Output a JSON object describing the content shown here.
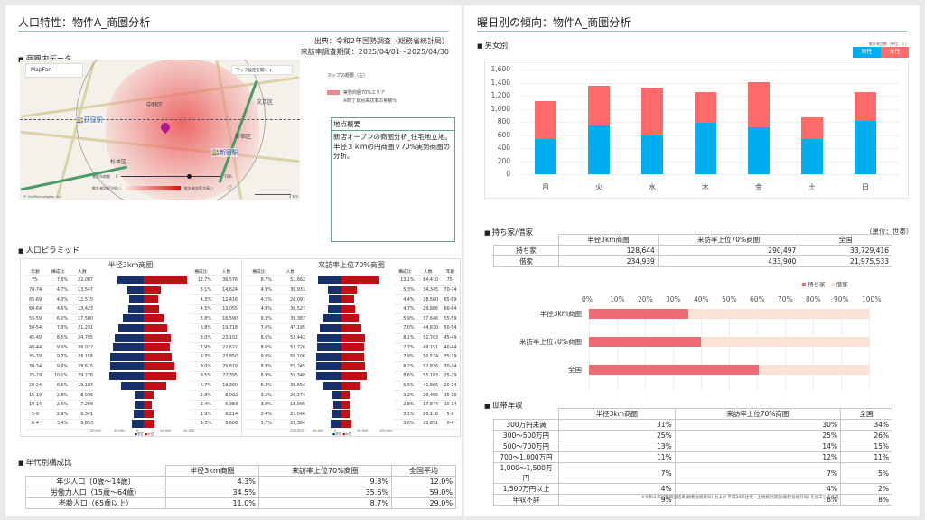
{
  "left": {
    "title": "人口特性：物件A_商圏分析",
    "source": "出典：令和2年国勢調査（総務省統計局）",
    "period": "来訪率調査期間：2025/04/01～2025/04/30",
    "area_section": "商圏内データ",
    "map": {
      "brand": "MapFan",
      "dropdown": "マップ設定を開く",
      "labels": [
        "文京区",
        "新宿区",
        "杉並区",
        "中野区"
      ],
      "stations": [
        "荻窪駅",
        "新宿駅"
      ],
      "slider_label": "来訪%商圏",
      "slider_min": "0",
      "slider_max": "70%",
      "grad_low": "推計来訪率が低い",
      "grad_high": "推計来訪率が高い",
      "copyright": "© GeoTechnologies, Inc.",
      "scale": "2 km"
    },
    "map_legend": {
      "title": "マップの概要（左）",
      "item": "実勢商圏70%エリア",
      "note": "※町丁目別来訪率の累積%"
    },
    "summary": {
      "header": "地点概要",
      "body": "新店オープンの商圏分析_住宅地立地。半径３ｋｍの円商圏ｖ70%実勢商圏の分析。"
    },
    "pyramid_section": "人口ピラミッド",
    "pyramids": [
      {
        "title": "半径3km商圏",
        "col_age": "年齢",
        "col_ratio": "構成比",
        "col_count": "人数",
        "axis": [
          "-40,000",
          "-20,000",
          "0",
          "20,000",
          "40,000"
        ],
        "legend_m": "男性",
        "legend_f": "女性"
      },
      {
        "title": "来訪率上位70%商圏",
        "col_age": "年齢",
        "col_ratio": "構成比",
        "col_count": "人数",
        "axis": [
          "-100,000",
          "-50,000",
          "0",
          "50,000",
          "100,000"
        ],
        "legend_m": "男性",
        "legend_f": "女性"
      }
    ],
    "age_section": "年代別構成比",
    "age_table": {
      "headers": [
        "半径3km商圏",
        "来訪率上位70%商圏",
        "全国平均"
      ],
      "rows": [
        {
          "label": "年少人口（0歳～14歳）",
          "values": [
            "4.3%",
            "9.8%",
            "12.0%"
          ]
        },
        {
          "label": "労働力人口（15歳～64歳）",
          "values": [
            "34.5%",
            "35.6%",
            "59.0%"
          ]
        },
        {
          "label": "老齢人口（65歳以上）",
          "values": [
            "11.0%",
            "8.7%",
            "29.0%"
          ]
        }
      ]
    }
  },
  "right": {
    "title": "曜日別の傾向：物件A_商圏分析",
    "gender_section": "男女別",
    "legend_unit": "推計来訪数（単位：人）",
    "legend_male": "男性",
    "legend_female": "女性",
    "housing_section": "持ち家/借家",
    "housing_unit": "（単位：世帯）",
    "housing_table": {
      "headers": [
        "半径3km商圏",
        "来訪率上位70%商圏",
        "全国"
      ],
      "rows": [
        {
          "label": "持ち家",
          "values": [
            "128,644",
            "290,497",
            "33,729,416"
          ]
        },
        {
          "label": "借家",
          "values": [
            "234,939",
            "433,900",
            "21,975,533"
          ]
        }
      ]
    },
    "housing_legend": [
      "持ち家",
      "借家"
    ],
    "income_section": "世帯年収",
    "income_table": {
      "headers": [
        "半径3km商圏",
        "来訪率上位70%商圏",
        "全国"
      ],
      "rows": [
        {
          "label": "300万円未満",
          "values": [
            "31%",
            "30%",
            "34%"
          ]
        },
        {
          "label": "300～500万円",
          "values": [
            "25%",
            "25%",
            "26%"
          ]
        },
        {
          "label": "500～700万円",
          "values": [
            "13%",
            "14%",
            "15%"
          ]
        },
        {
          "label": "700～1,000万円",
          "values": [
            "11%",
            "12%",
            "11%"
          ]
        },
        {
          "label": "1,000～1,500万円",
          "values": [
            "7%",
            "7%",
            "5%"
          ]
        },
        {
          "label": "1,500万円以上",
          "values": [
            "4%",
            "4%",
            "2%"
          ]
        },
        {
          "label": "年収不詳",
          "values": [
            "9%",
            "8%",
            "8%"
          ]
        }
      ]
    },
    "footnote": "※令和２年国勢調査結果(総務省統計局) および 平成30年住宅・土地統計調査(総務省統計局) を加工して作成"
  },
  "colors": {
    "male_blue": "#00aeef",
    "female_red": "#ff6666",
    "pyr_male": "#17306b",
    "pyr_female": "#c00e14",
    "own": "#ef6b73",
    "rent": "#fbe2d6",
    "title_line": "#8fc6cc"
  },
  "chart_data": [
    {
      "type": "bar",
      "title": "男女別",
      "stacked": true,
      "categories": [
        "月",
        "火",
        "水",
        "木",
        "金",
        "土",
        "日"
      ],
      "series": [
        {
          "name": "男性",
          "values": [
            540,
            750,
            590,
            780,
            720,
            540,
            810
          ]
        },
        {
          "name": "女性",
          "values": [
            580,
            600,
            730,
            470,
            690,
            330,
            440
          ]
        }
      ],
      "ylabel": "推計来訪数（単位：人）",
      "ylim": [
        0,
        1600
      ],
      "yticks": [
        "0",
        "200",
        "400",
        "600",
        "800",
        "1,000",
        "1,200",
        "1,400",
        "1,600"
      ]
    },
    {
      "type": "bar",
      "title": "持ち家/借家 比率",
      "orientation": "horizontal",
      "stacked": true,
      "categories": [
        "半径3km商圏",
        "来訪率上位70%商圏",
        "全国"
      ],
      "series": [
        {
          "name": "持ち家",
          "values": [
            35.4,
            40.1,
            60.6
          ]
        },
        {
          "name": "借家",
          "values": [
            64.6,
            59.9,
            39.4
          ]
        }
      ],
      "xlim": [
        0,
        100
      ],
      "xticks": [
        "0%",
        "10%",
        "20%",
        "30%",
        "40%",
        "50%",
        "60%",
        "70%",
        "80%",
        "90%",
        "100%"
      ]
    },
    {
      "type": "bar",
      "title": "半径3km商圏 人口ピラミッド",
      "orientation": "horizontal",
      "categories": [
        "75-",
        "70-74",
        "65-69",
        "60-64",
        "55-59",
        "50-54",
        "45-49",
        "40-44",
        "35-39",
        "30-34",
        "25-29",
        "20-24",
        "15-19",
        "10-14",
        "5-9",
        "0-4"
      ],
      "series": [
        {
          "name": "男性",
          "ratio": [
            "7.6%",
            "4.7%",
            "4.3%",
            "4.6%",
            "6.0%",
            "7.3%",
            "8.5%",
            "9.0%",
            "9.7%",
            "9.9%",
            "10.1%",
            "6.6%",
            "2.8%",
            "2.5%",
            "2.9%",
            "3.4%"
          ],
          "values": [
            22087,
            13547,
            12515,
            13423,
            17500,
            21291,
            24785,
            26022,
            28158,
            28615,
            29278,
            19187,
            8035,
            7296,
            8341,
            9853
          ]
        },
        {
          "name": "女性",
          "ratio": [
            "12.7%",
            "5.1%",
            "4.3%",
            "4.5%",
            "5.8%",
            "6.8%",
            "8.0%",
            "7.9%",
            "8.3%",
            "9.0%",
            "9.5%",
            "6.7%",
            "2.8%",
            "2.4%",
            "2.9%",
            "3.3%"
          ],
          "values": [
            36576,
            14624,
            12416,
            13055,
            16590,
            19718,
            23102,
            22622,
            23850,
            25819,
            27395,
            19360,
            8092,
            6983,
            8214,
            9606
          ]
        }
      ],
      "xlim": [
        -40000,
        40000
      ]
    },
    {
      "type": "bar",
      "title": "来訪率上位70%商圏 人口ピラミッド",
      "orientation": "horizontal",
      "categories": [
        "75-",
        "70-74",
        "65-69",
        "60-64",
        "55-59",
        "50-54",
        "45-49",
        "40-44",
        "35-39",
        "30-34",
        "25-29",
        "20-24",
        "15-19",
        "10-14",
        "5-9",
        "0-4"
      ],
      "series": [
        {
          "name": "男性",
          "ratio": [
            "8.7%",
            "4.9%",
            "4.5%",
            "4.9%",
            "6.3%",
            "7.6%",
            "8.6%",
            "8.6%",
            "9.0%",
            "8.8%",
            "8.9%",
            "6.3%",
            "3.2%",
            "3.0%",
            "3.4%",
            "3.7%"
          ],
          "values": [
            51662,
            30931,
            28091,
            30527,
            39387,
            47195,
            53442,
            53726,
            56106,
            55245,
            55348,
            39654,
            20274,
            18995,
            21046,
            23384
          ]
        },
        {
          "name": "女性",
          "ratio": [
            "13.1%",
            "5.3%",
            "4.4%",
            "4.7%",
            "5.9%",
            "7.0%",
            "8.1%",
            "7.7%",
            "7.9%",
            "8.2%",
            "8.6%",
            "6.5%",
            "3.2%",
            "2.8%",
            "3.1%",
            "3.6%"
          ],
          "values": [
            84410,
            34345,
            28560,
            29886,
            37646,
            44830,
            51763,
            49151,
            50574,
            52826,
            55183,
            41866,
            20455,
            17874,
            20116,
            22851
          ]
        }
      ],
      "xlim": [
        -100000,
        100000
      ]
    }
  ]
}
